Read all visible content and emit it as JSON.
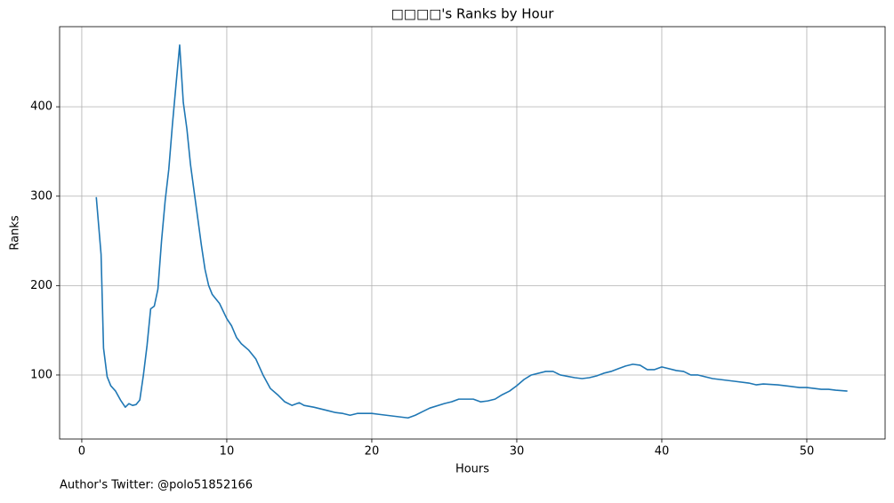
{
  "chart_data": {
    "type": "line",
    "title": "□□□□'s Ranks by Hour",
    "xlabel": "Hours",
    "ylabel": "Ranks",
    "annotation": "Author's Twitter: @polo51852166",
    "color": "#1f77b4",
    "grid": true,
    "xlim": [
      -1.53,
      55.4
    ],
    "ylim": [
      28.4,
      489.6
    ],
    "xticks": [
      0,
      10,
      20,
      30,
      40,
      50
    ],
    "yticks": [
      100,
      200,
      300,
      400
    ],
    "x": [
      1.0,
      1.33,
      1.5,
      1.75,
      2.0,
      2.33,
      2.67,
      3.0,
      3.25,
      3.5,
      3.75,
      4.0,
      4.25,
      4.5,
      4.75,
      5.0,
      5.25,
      5.5,
      5.75,
      6.0,
      6.25,
      6.5,
      6.75,
      7.0,
      7.25,
      7.5,
      7.75,
      8.0,
      8.25,
      8.5,
      8.75,
      9.0,
      9.5,
      10,
      10.33,
      10.67,
      11,
      11.5,
      12,
      12.5,
      13,
      13.5,
      14,
      14.5,
      15,
      15.33,
      16,
      16.5,
      17,
      17.5,
      18,
      18.5,
      19,
      20,
      20.5,
      21,
      22,
      22.5,
      23,
      23.5,
      24,
      25,
      25.5,
      26,
      27,
      27.5,
      28,
      28.5,
      29,
      29.5,
      30,
      30.5,
      31,
      32,
      32.5,
      33,
      34,
      34.5,
      35,
      35.5,
      36,
      36.5,
      37,
      37.5,
      38,
      38.5,
      39,
      39.5,
      40,
      41,
      41.5,
      42,
      42.5,
      43,
      43.5,
      44,
      45,
      46,
      46.5,
      47,
      48,
      49,
      49.5,
      50,
      50.5,
      51,
      51.5,
      52,
      52.8
    ],
    "values": [
      299,
      235,
      130,
      98,
      88,
      82,
      72,
      64,
      68,
      66,
      67,
      72,
      100,
      133,
      174,
      177,
      196,
      250,
      295,
      330,
      380,
      425,
      469,
      405,
      375,
      335,
      305,
      275,
      245,
      218,
      200,
      190,
      180,
      163,
      155,
      142,
      135,
      128,
      118,
      100,
      85,
      78,
      70,
      66,
      69,
      66,
      64,
      62,
      60,
      58,
      57,
      55,
      57,
      57,
      56,
      55,
      53,
      52,
      55,
      59,
      63,
      68,
      70,
      73,
      73,
      70,
      71,
      73,
      78,
      82,
      88,
      95,
      100,
      104,
      104,
      100,
      97,
      96,
      97,
      99,
      102,
      104,
      107,
      110,
      112,
      111,
      106,
      106,
      109,
      105,
      104,
      100,
      100,
      98,
      96,
      95,
      93,
      91,
      89,
      90,
      89,
      87,
      86,
      86,
      85,
      84,
      84,
      83,
      82
    ]
  }
}
